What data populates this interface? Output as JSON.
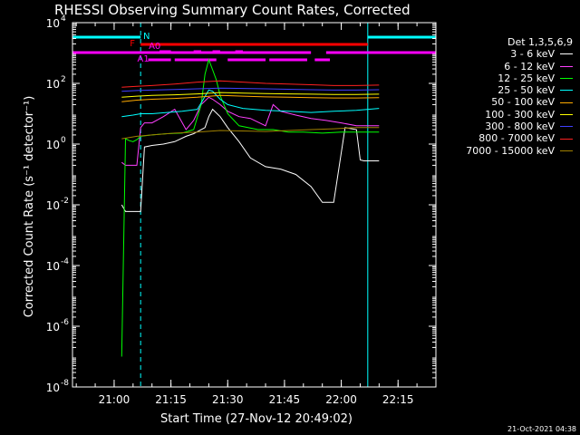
{
  "chart_data": {
    "type": "line",
    "title": "RHESSI Observing Summary Count Rates, Corrected",
    "xlabel": "Start Time (27-Nov-12 20:49:02)",
    "ylabel": "Corrected Count Rate (s⁻¹ detector⁻¹)",
    "yscale": "log",
    "xlim": [
      "20:49",
      "22:25"
    ],
    "ylim": [
      1e-08,
      10000.0
    ],
    "x_ticks": [
      "21:00",
      "21:15",
      "21:30",
      "21:45",
      "22:00",
      "22:15"
    ],
    "y_ticks": [
      {
        "value": 10000.0,
        "label": "10",
        "exp": "4"
      },
      {
        "value": 100.0,
        "label": "10",
        "exp": "2"
      },
      {
        "value": 1.0,
        "label": "10",
        "exp": "0"
      },
      {
        "value": 0.01,
        "label": "10",
        "exp": "-2"
      },
      {
        "value": 0.0001,
        "label": "10",
        "exp": "-4"
      },
      {
        "value": 1e-06,
        "label": "10",
        "exp": "-6"
      },
      {
        "value": 1e-08,
        "label": "10",
        "exp": "-8"
      }
    ],
    "legend_title": "Det 1,3,5,6,9",
    "legend_position": "right",
    "series": [
      {
        "name": "3 - 6 keV",
        "color": "#ffffff",
        "x": [
          "21:02",
          "21:03",
          "21:04",
          "21:05",
          "21:06",
          "21:07",
          "21:08",
          "21:10",
          "21:13",
          "21:16",
          "21:19",
          "21:21",
          "21:24",
          "21:25",
          "21:26",
          "21:28",
          "21:30",
          "21:33",
          "21:36",
          "21:40",
          "21:44",
          "21:48",
          "21:52",
          "21:55",
          "21:58",
          "22:01",
          "22:04",
          "22:05",
          "22:06",
          "22:07",
          "22:08",
          "22:10"
        ],
        "y": [
          0.01,
          0.006,
          0.006,
          0.006,
          0.006,
          0.006,
          0.8,
          0.9,
          1.0,
          1.2,
          1.8,
          2.2,
          3.5,
          8,
          14,
          8,
          3.5,
          1.2,
          0.35,
          0.18,
          0.15,
          0.1,
          0.04,
          0.012,
          0.012,
          3.5,
          3.0,
          0.3,
          0.28,
          0.28,
          0.28,
          0.28
        ]
      },
      {
        "name": "6 - 12 keV",
        "color": "#ff40ff",
        "x": [
          "21:02",
          "21:03",
          "21:04",
          "21:05",
          "21:06",
          "21:07",
          "21:08",
          "21:10",
          "21:13",
          "21:16",
          "21:19",
          "21:21",
          "21:23",
          "21:25",
          "21:26",
          "21:28",
          "21:30",
          "21:33",
          "21:36",
          "21:40",
          "21:42",
          "21:44",
          "21:48",
          "21:52",
          "21:56",
          "22:00",
          "22:04",
          "22:08",
          "22:10"
        ],
        "y": [
          0.25,
          0.2,
          0.2,
          0.2,
          0.2,
          3.5,
          5,
          5,
          8,
          14,
          3,
          6,
          20,
          35,
          30,
          20,
          12,
          8,
          7,
          4,
          20,
          12,
          9,
          7,
          6,
          5,
          4,
          4,
          4
        ]
      },
      {
        "name": "12 - 25 keV",
        "color": "#00ff00",
        "x": [
          "21:02",
          "21:03",
          "21:04",
          "21:05",
          "21:06",
          "21:07",
          "21:10",
          "21:14",
          "21:18",
          "21:21",
          "21:23",
          "21:24",
          "21:25",
          "21:26",
          "21:27",
          "21:28",
          "21:30",
          "21:33",
          "21:38",
          "21:42",
          "21:46",
          "21:50",
          "21:55",
          "22:00",
          "22:05",
          "22:10"
        ],
        "y": [
          1e-07,
          1.5,
          1.3,
          1.2,
          1.4,
          1.8,
          2.0,
          2.2,
          2.3,
          3,
          20,
          200,
          600,
          280,
          130,
          40,
          10,
          4,
          3,
          3,
          2.5,
          2.5,
          2.3,
          2.5,
          2.5,
          2.5
        ]
      },
      {
        "name": "25 - 50 keV",
        "color": "#00ffff",
        "x": [
          "21:02",
          "21:05",
          "21:07",
          "21:10",
          "21:14",
          "21:18",
          "21:22",
          "21:25",
          "21:26",
          "21:28",
          "21:30",
          "21:34",
          "21:40",
          "21:46",
          "21:52",
          "21:58",
          "22:04",
          "22:10"
        ],
        "y": [
          8,
          9,
          10,
          10,
          11,
          12,
          14,
          60,
          55,
          30,
          20,
          15,
          13,
          12,
          11,
          12,
          13,
          15
        ]
      },
      {
        "name": "50 - 100 keV",
        "color": "#ffaa00",
        "x": [
          "21:02",
          "21:06",
          "21:10",
          "21:16",
          "21:22",
          "21:28",
          "21:34",
          "21:40",
          "21:46",
          "21:52",
          "21:58",
          "22:04",
          "22:10"
        ],
        "y": [
          25,
          28,
          30,
          32,
          35,
          40,
          38,
          36,
          35,
          34,
          33,
          33,
          34
        ]
      },
      {
        "name": "100 - 300 keV",
        "color": "#ffff00",
        "x": [
          "21:02",
          "21:06",
          "21:10",
          "21:16",
          "21:22",
          "21:28",
          "21:34",
          "21:40",
          "21:46",
          "21:52",
          "21:58",
          "22:04",
          "22:10"
        ],
        "y": [
          35,
          38,
          40,
          42,
          45,
          50,
          48,
          46,
          45,
          44,
          43,
          43,
          44
        ]
      },
      {
        "name": "300 - 800 keV",
        "color": "#4040ff",
        "x": [
          "21:02",
          "21:06",
          "21:10",
          "21:16",
          "21:22",
          "21:28",
          "21:34",
          "21:40",
          "21:46",
          "21:52",
          "21:58",
          "22:04",
          "22:10"
        ],
        "y": [
          55,
          58,
          60,
          63,
          66,
          70,
          68,
          66,
          64,
          62,
          60,
          60,
          62
        ]
      },
      {
        "name": "800 - 7000 keV",
        "color": "#ff2020",
        "x": [
          "21:02",
          "21:06",
          "21:10",
          "21:16",
          "21:22",
          "21:28",
          "21:34",
          "21:40",
          "21:46",
          "21:52",
          "21:58",
          "22:04",
          "22:10"
        ],
        "y": [
          75,
          80,
          85,
          95,
          110,
          120,
          110,
          100,
          95,
          90,
          85,
          85,
          88
        ]
      },
      {
        "name": "7000 - 15000 keV",
        "color": "#a08000",
        "x": [
          "21:02",
          "21:06",
          "21:10",
          "21:16",
          "21:22",
          "21:28",
          "21:34",
          "21:40",
          "21:46",
          "21:52",
          "21:58",
          "22:04",
          "22:10"
        ],
        "y": [
          1.5,
          1.8,
          2.0,
          2.3,
          2.5,
          2.8,
          2.7,
          2.6,
          2.8,
          3.0,
          3.2,
          3.5,
          3.5
        ]
      }
    ],
    "flags": [
      {
        "label": "N",
        "color": "#00ffff",
        "level": 4,
        "segments": [
          [
            "20:49",
            "21:07"
          ],
          [
            "22:07",
            "22:25"
          ]
        ]
      },
      {
        "label": "F",
        "color": "#ff0000",
        "level": 3,
        "segments": [
          [
            "21:07",
            "22:07"
          ]
        ]
      },
      {
        "label": "",
        "color": "#ff00ff",
        "level": 2,
        "segments": [
          [
            "20:49",
            "21:52"
          ],
          [
            "21:56",
            "22:25"
          ]
        ]
      },
      {
        "label": "A0",
        "color": "#ff00ff",
        "level": 1,
        "segments": [
          [
            "21:12",
            "21:15"
          ],
          [
            "21:21",
            "21:23"
          ],
          [
            "21:26",
            "21:28"
          ],
          [
            "21:32",
            "21:34"
          ]
        ]
      },
      {
        "label": "A1",
        "color": "#ff00ff",
        "level": 0,
        "segments": [
          [
            "21:09",
            "21:15"
          ],
          [
            "21:16",
            "21:27"
          ],
          [
            "21:30",
            "21:40"
          ],
          [
            "21:41",
            "21:51"
          ],
          [
            "21:53",
            "21:57"
          ]
        ]
      }
    ],
    "vlines": [
      {
        "x": "21:07",
        "color": "#00ffff",
        "style": "dashed"
      },
      {
        "x": "22:07",
        "color": "#00ffff",
        "style": "solid"
      },
      {
        "x": "20:49",
        "color": "#00ffff",
        "style": "solid"
      },
      {
        "x": "22:25",
        "color": "#00ffff",
        "style": "dashed"
      }
    ]
  },
  "footer": "21-Oct-2021 04:38"
}
